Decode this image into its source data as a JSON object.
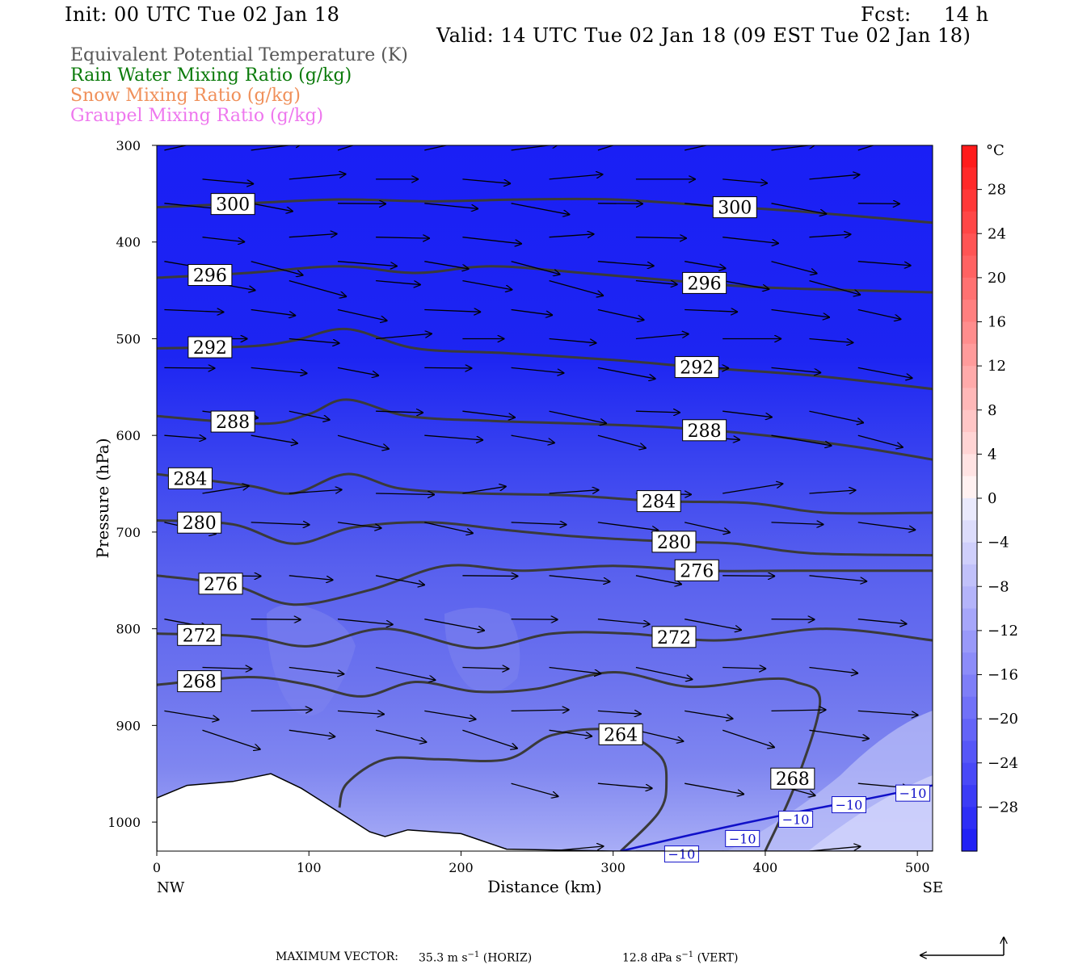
{
  "header": {
    "init": "Init: 00 UTC Tue 02 Jan 18",
    "fcst_label": "Fcst:",
    "fcst_value": "14 h",
    "valid": "Valid: 14 UTC Tue 02 Jan 18 (09 EST Tue 02 Jan 18)"
  },
  "legend": [
    {
      "text": "Equivalent Potential Temperature (K)",
      "color": "#555555"
    },
    {
      "text": "Rain Water Mixing Ratio (g/kg)",
      "color": "#0a7a0a"
    },
    {
      "text": "Snow Mixing Ratio (g/kg)",
      "color": "#f0905a"
    },
    {
      "text": "Graupel Mixing Ratio (g/kg)",
      "color": "#ee77ee"
    }
  ],
  "chart_data": {
    "type": "cross-section",
    "xlabel": "Distance (km)",
    "ylabel": "Pressure (hPa)",
    "xlim": [
      0,
      510
    ],
    "ylim": [
      300,
      1030
    ],
    "x_ticks": [
      0,
      100,
      200,
      300,
      400,
      500
    ],
    "y_ticks": [
      300,
      400,
      500,
      600,
      700,
      800,
      900,
      1000
    ],
    "x_end_labels": {
      "left": "NW",
      "right": "SE"
    },
    "colorbar": {
      "unit": "°C",
      "range": [
        -32,
        32
      ],
      "tick_labels": [
        "28",
        "24",
        "20",
        "16",
        "12",
        "8",
        "4",
        "0",
        "−4",
        "−8",
        "−12",
        "−16",
        "−20",
        "−24",
        "−28"
      ],
      "tick_values": [
        28,
        24,
        20,
        16,
        12,
        8,
        4,
        0,
        -4,
        -8,
        -12,
        -16,
        -20,
        -24,
        -28
      ]
    },
    "theta_e_contours": [
      {
        "label": "300",
        "points": [
          [
            0,
            364
          ],
          [
            60,
            360
          ],
          [
            120,
            356
          ],
          [
            180,
            358
          ],
          [
            240,
            356
          ],
          [
            300,
            356
          ],
          [
            360,
            362
          ],
          [
            420,
            368
          ],
          [
            510,
            380
          ]
        ]
      },
      {
        "label": "296",
        "points": [
          [
            0,
            437
          ],
          [
            60,
            432
          ],
          [
            120,
            425
          ],
          [
            170,
            432
          ],
          [
            220,
            425
          ],
          [
            280,
            432
          ],
          [
            340,
            440
          ],
          [
            400,
            447
          ],
          [
            510,
            452
          ]
        ]
      },
      {
        "label": "292",
        "points": [
          [
            0,
            510
          ],
          [
            60,
            508
          ],
          [
            90,
            502
          ],
          [
            125,
            490
          ],
          [
            170,
            510
          ],
          [
            230,
            515
          ],
          [
            300,
            522
          ],
          [
            360,
            530
          ],
          [
            430,
            538
          ],
          [
            510,
            552
          ]
        ]
      },
      {
        "label": "288",
        "points": [
          [
            0,
            580
          ],
          [
            70,
            588
          ],
          [
            100,
            578
          ],
          [
            125,
            563
          ],
          [
            165,
            580
          ],
          [
            220,
            585
          ],
          [
            280,
            588
          ],
          [
            340,
            592
          ],
          [
            400,
            600
          ],
          [
            460,
            612
          ],
          [
            510,
            625
          ]
        ]
      },
      {
        "label": "284",
        "points": [
          [
            0,
            640
          ],
          [
            60,
            652
          ],
          [
            90,
            660
          ],
          [
            125,
            640
          ],
          [
            160,
            655
          ],
          [
            210,
            660
          ],
          [
            270,
            662
          ],
          [
            330,
            668
          ],
          [
            390,
            670
          ],
          [
            440,
            680
          ],
          [
            510,
            680
          ]
        ]
      },
      {
        "label": "280",
        "points": [
          [
            0,
            688
          ],
          [
            50,
            692
          ],
          [
            90,
            712
          ],
          [
            130,
            695
          ],
          [
            180,
            690
          ],
          [
            230,
            698
          ],
          [
            280,
            705
          ],
          [
            340,
            710
          ],
          [
            380,
            712
          ],
          [
            430,
            722
          ],
          [
            510,
            724
          ]
        ]
      },
      {
        "label": "276",
        "points": [
          [
            0,
            745
          ],
          [
            50,
            755
          ],
          [
            90,
            775
          ],
          [
            140,
            760
          ],
          [
            190,
            735
          ],
          [
            240,
            740
          ],
          [
            300,
            735
          ],
          [
            360,
            740
          ],
          [
            420,
            740
          ],
          [
            510,
            740
          ]
        ]
      },
      {
        "label": "272",
        "points": [
          [
            0,
            805
          ],
          [
            60,
            808
          ],
          [
            100,
            818
          ],
          [
            150,
            800
          ],
          [
            210,
            820
          ],
          [
            260,
            805
          ],
          [
            310,
            805
          ],
          [
            370,
            812
          ],
          [
            440,
            800
          ],
          [
            510,
            812
          ]
        ]
      },
      {
        "label": "268",
        "points": [
          [
            0,
            858
          ],
          [
            60,
            850
          ],
          [
            100,
            858
          ],
          [
            135,
            870
          ],
          [
            170,
            855
          ],
          [
            210,
            865
          ],
          [
            250,
            862
          ],
          [
            300,
            845
          ],
          [
            350,
            860
          ],
          [
            400,
            852
          ],
          [
            420,
            855
          ],
          [
            436,
            875
          ],
          [
            420,
            960
          ],
          [
            400,
            1030
          ]
        ]
      },
      {
        "label": "264",
        "points": [
          [
            120,
            985
          ],
          [
            125,
            960
          ],
          [
            150,
            935
          ],
          [
            185,
            935
          ],
          [
            230,
            935
          ],
          [
            260,
            910
          ],
          [
            300,
            905
          ],
          [
            330,
            930
          ],
          [
            335,
            960
          ],
          [
            330,
            990
          ],
          [
            305,
            1030
          ]
        ]
      }
    ],
    "temperature_contour": {
      "label": "−10",
      "points": [
        [
          305,
          1030
        ],
        [
          360,
          1010
        ],
        [
          420,
          990
        ],
        [
          470,
          975
        ],
        [
          510,
          962
        ]
      ]
    }
  },
  "footer": {
    "label": "MAXIMUM VECTOR:",
    "horiz_value": "35.3 m s",
    "horiz_exp": "−1",
    "horiz_tag": "(HORIZ)",
    "vert_value": "12.8 dPa s",
    "vert_exp": "−1",
    "vert_tag": "(VERT)"
  }
}
